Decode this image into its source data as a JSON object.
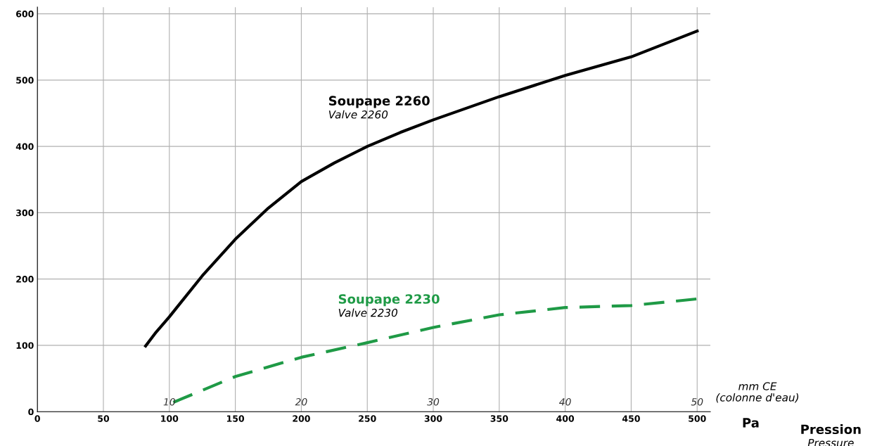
{
  "chart_data": {
    "type": "line",
    "xlabel": "Pa",
    "x2label": "mm CE\n(colonne d'eau)",
    "xlim": [
      0,
      510
    ],
    "ylim": [
      0,
      610
    ],
    "xticks": [
      0,
      50,
      100,
      150,
      200,
      250,
      300,
      350,
      400,
      450,
      500
    ],
    "yticks": [
      0,
      100,
      200,
      300,
      400,
      500,
      600
    ],
    "x2lim": [
      0,
      51
    ],
    "x2ticks": [
      10,
      20,
      30,
      40,
      50
    ],
    "grid": true,
    "legend": false,
    "series": [
      {
        "name": "Soupape 2260",
        "color": "#000000",
        "line_style": "solid",
        "x": [
          82,
          90,
          100,
          125,
          150,
          175,
          200,
          225,
          250,
          275,
          300,
          350,
          400,
          450,
          500
        ],
        "values": [
          99,
          120,
          143,
          205,
          260,
          307,
          347,
          375,
          400,
          421,
          440,
          475,
          507,
          535,
          574
        ]
      },
      {
        "name": "Soupape 2230",
        "color": "#1f9a46",
        "line_style": "dashed",
        "x": [
          103,
          150,
          200,
          250,
          300,
          350,
          400,
          450,
          500
        ],
        "values": [
          14,
          53,
          82,
          104,
          127,
          146,
          157,
          160,
          170
        ]
      }
    ],
    "annotations": [
      "Valve 2260",
      "Valve 2230",
      "Pression",
      "Pressure"
    ]
  }
}
